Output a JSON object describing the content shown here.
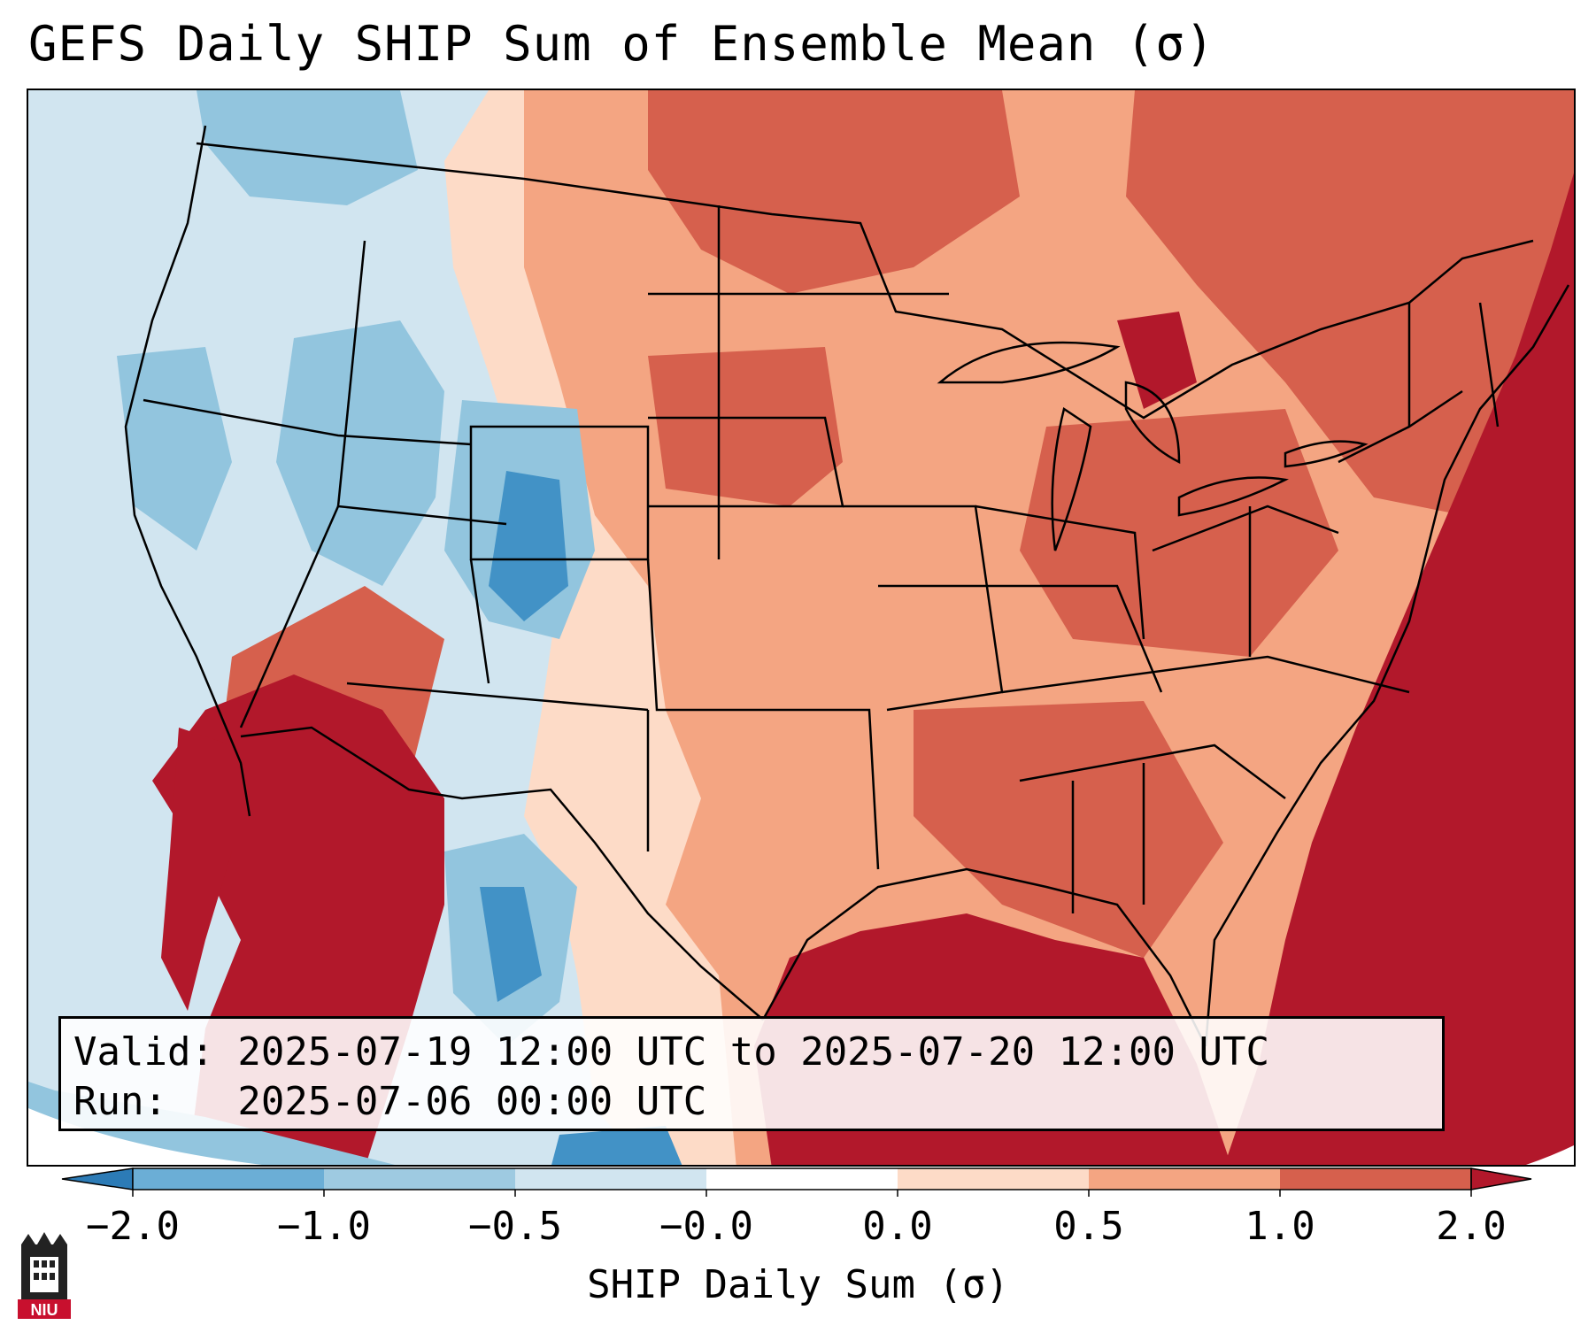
{
  "title": "GEFS Daily SHIP Sum of Ensemble Mean (σ)",
  "info": {
    "valid_line": "Valid: 2025-07-19 12:00 UTC to 2025-07-20 12:00 UTC",
    "run_line": "Run:   2025-07-06 00:00 UTC"
  },
  "colorbar": {
    "label": "SHIP Daily Sum (σ)",
    "ticks": [
      "−2.0",
      "−1.0",
      "−0.5",
      "−0.0",
      "0.0",
      "0.5",
      "1.0",
      "2.0"
    ],
    "colors": [
      "#2c7bb6",
      "#6baed6",
      "#9ecae1",
      "#d1e5f0",
      "#ffffff",
      "#fddbc7",
      "#f4a582",
      "#d6604d",
      "#b2182b"
    ],
    "extend": "both"
  },
  "map": {
    "region": "Contiguous United States, southern Canada, northern Mexico and Gulf of Mexico",
    "legend_colors": {
      "strong_negative": "#4292c6",
      "moderate_negative": "#92c5de",
      "weak_negative": "#d1e5f0",
      "weak_positive": "#fddbc7",
      "moderate_positive": "#f4a582",
      "strong_positive": "#d6604d",
      "very_strong_positive": "#b2182b"
    }
  },
  "logo": {
    "text": "NIU"
  }
}
